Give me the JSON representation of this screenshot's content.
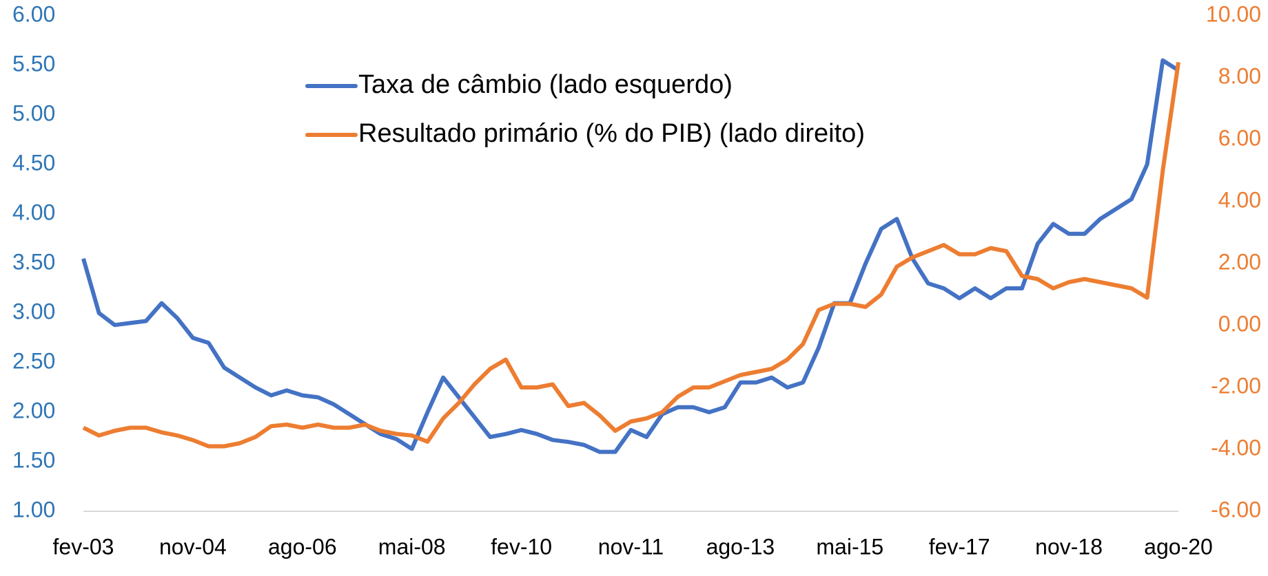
{
  "chart_data": {
    "type": "line",
    "categories": [
      "fev-03",
      null,
      null,
      null,
      null,
      null,
      null,
      "nov-04",
      null,
      null,
      null,
      null,
      null,
      null,
      "ago-06",
      null,
      null,
      null,
      null,
      null,
      null,
      "mai-08",
      null,
      null,
      null,
      null,
      null,
      null,
      "fev-10",
      null,
      null,
      null,
      null,
      null,
      null,
      "nov-11",
      null,
      null,
      null,
      null,
      null,
      null,
      "ago-13",
      null,
      null,
      null,
      null,
      null,
      null,
      "mai-15",
      null,
      null,
      null,
      null,
      null,
      null,
      "fev-17",
      null,
      null,
      null,
      null,
      null,
      null,
      "nov-18",
      null,
      null,
      null,
      null,
      null,
      null,
      "ago-20"
    ],
    "series": [
      {
        "name": "Taxa de câmbio (lado esquerdo)",
        "color": "#4472c4",
        "axis": "y",
        "values": [
          3.55,
          3.0,
          2.88,
          2.9,
          2.92,
          3.1,
          2.95,
          2.75,
          2.7,
          2.45,
          2.35,
          2.25,
          2.17,
          2.22,
          2.17,
          2.15,
          2.08,
          1.98,
          1.88,
          1.78,
          1.73,
          1.63,
          2.0,
          2.35,
          2.15,
          1.95,
          1.75,
          1.78,
          1.82,
          1.78,
          1.72,
          1.7,
          1.67,
          1.6,
          1.6,
          1.82,
          1.75,
          1.98,
          2.05,
          2.05,
          2.0,
          2.05,
          2.3,
          2.3,
          2.35,
          2.25,
          2.3,
          2.65,
          3.1,
          3.1,
          3.5,
          3.85,
          3.95,
          3.55,
          3.3,
          3.25,
          3.15,
          3.25,
          3.15,
          3.25,
          3.25,
          3.7,
          3.9,
          3.8,
          3.8,
          3.95,
          4.05,
          4.15,
          4.5,
          5.55,
          5.45
        ]
      },
      {
        "name": "Resultado primário (% do PIB) (lado direito)",
        "color": "#ed7d31",
        "axis": "y2",
        "values": [
          -3.3,
          -3.55,
          -3.4,
          -3.3,
          -3.3,
          -3.45,
          -3.55,
          -3.7,
          -3.9,
          -3.9,
          -3.8,
          -3.6,
          -3.25,
          -3.2,
          -3.3,
          -3.2,
          -3.3,
          -3.3,
          -3.2,
          -3.4,
          -3.5,
          -3.55,
          -3.75,
          -3.0,
          -2.5,
          -1.9,
          -1.4,
          -1.1,
          -2.0,
          -2.0,
          -1.9,
          -2.6,
          -2.5,
          -2.9,
          -3.4,
          -3.1,
          -3.0,
          -2.8,
          -2.3,
          -2.0,
          -2.0,
          -1.8,
          -1.6,
          -1.5,
          -1.4,
          -1.1,
          -0.6,
          0.5,
          0.7,
          0.7,
          0.6,
          1.0,
          1.9,
          2.2,
          2.4,
          2.6,
          2.3,
          2.3,
          2.5,
          2.4,
          1.6,
          1.5,
          1.2,
          1.4,
          1.5,
          1.4,
          1.3,
          1.2,
          0.9,
          5.0,
          8.5
        ]
      }
    ],
    "ylim": [
      1,
      6
    ],
    "yticks": [
      {
        "value": 1,
        "label": "1.00"
      },
      {
        "value": 1.5,
        "label": "1.50"
      },
      {
        "value": 2,
        "label": "2.00"
      },
      {
        "value": 2.5,
        "label": "2.50"
      },
      {
        "value": 3,
        "label": "3.00"
      },
      {
        "value": 3.5,
        "label": "3.50"
      },
      {
        "value": 4,
        "label": "4.00"
      },
      {
        "value": 4.5,
        "label": "4.50"
      },
      {
        "value": 5,
        "label": "5.00"
      },
      {
        "value": 5.5,
        "label": "5.50"
      },
      {
        "value": 6,
        "label": "6.00"
      }
    ],
    "y2lim": [
      -6,
      10
    ],
    "y2ticks": [
      {
        "value": -6,
        "label": "-6.00"
      },
      {
        "value": -4,
        "label": "-4.00"
      },
      {
        "value": -2,
        "label": "-2.00"
      },
      {
        "value": 0,
        "label": "0.00"
      },
      {
        "value": 2,
        "label": "2.00"
      },
      {
        "value": 4,
        "label": "4.00"
      },
      {
        "value": 6,
        "label": "6.00"
      },
      {
        "value": 8,
        "label": "8.00"
      },
      {
        "value": 10,
        "label": "10.00"
      }
    ],
    "yaxis_color": "#2e75b6",
    "y2axis_color": "#ed7d31"
  }
}
